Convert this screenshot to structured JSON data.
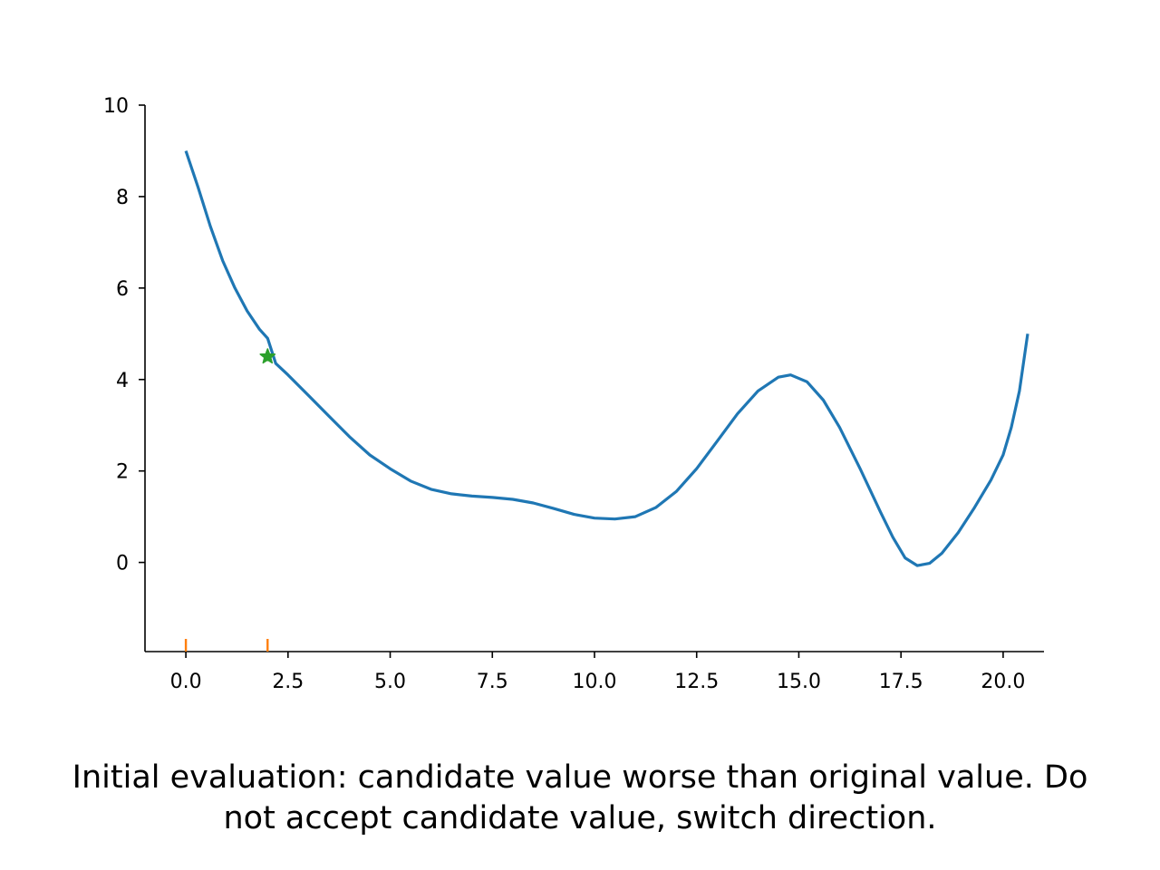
{
  "chart_data": {
    "type": "line",
    "xlim": [
      -1,
      21
    ],
    "ylim": [
      -1.95,
      10
    ],
    "x_ticks": [
      "0.0",
      "2.5",
      "5.0",
      "7.5",
      "10.0",
      "12.5",
      "15.0",
      "17.5",
      "20.0"
    ],
    "y_ticks": [
      "0",
      "2",
      "4",
      "6",
      "8",
      "10"
    ],
    "grid": false,
    "series": [
      {
        "color": "#1f77b4",
        "points": [
          [
            0.0,
            9.0
          ],
          [
            0.3,
            8.2
          ],
          [
            0.6,
            7.35
          ],
          [
            0.9,
            6.6
          ],
          [
            1.2,
            6.0
          ],
          [
            1.5,
            5.5
          ],
          [
            1.8,
            5.1
          ],
          [
            2.0,
            4.9
          ],
          [
            2.2,
            4.35
          ],
          [
            2.5,
            4.1
          ],
          [
            3.0,
            3.65
          ],
          [
            3.5,
            3.2
          ],
          [
            4.0,
            2.75
          ],
          [
            4.5,
            2.35
          ],
          [
            5.0,
            2.05
          ],
          [
            5.5,
            1.78
          ],
          [
            6.0,
            1.6
          ],
          [
            6.5,
            1.5
          ],
          [
            7.0,
            1.45
          ],
          [
            7.5,
            1.42
          ],
          [
            8.0,
            1.38
          ],
          [
            8.5,
            1.3
          ],
          [
            9.0,
            1.18
          ],
          [
            9.5,
            1.05
          ],
          [
            10.0,
            0.97
          ],
          [
            10.5,
            0.95
          ],
          [
            11.0,
            1.0
          ],
          [
            11.5,
            1.2
          ],
          [
            12.0,
            1.55
          ],
          [
            12.5,
            2.05
          ],
          [
            13.0,
            2.65
          ],
          [
            13.5,
            3.25
          ],
          [
            14.0,
            3.75
          ],
          [
            14.5,
            4.05
          ],
          [
            14.8,
            4.1
          ],
          [
            15.2,
            3.95
          ],
          [
            15.6,
            3.55
          ],
          [
            16.0,
            2.95
          ],
          [
            16.5,
            2.05
          ],
          [
            17.0,
            1.1
          ],
          [
            17.3,
            0.55
          ],
          [
            17.6,
            0.1
          ],
          [
            17.9,
            -0.07
          ],
          [
            18.2,
            -0.02
          ],
          [
            18.5,
            0.2
          ],
          [
            18.9,
            0.65
          ],
          [
            19.3,
            1.2
          ],
          [
            19.7,
            1.8
          ],
          [
            20.0,
            2.35
          ],
          [
            20.2,
            2.95
          ],
          [
            20.4,
            3.75
          ],
          [
            20.6,
            5.0
          ]
        ]
      }
    ],
    "current_point": {
      "x": 2.0,
      "y": 4.5,
      "marker": "star",
      "color": "#2ca02c"
    },
    "rug_ticks": {
      "x": [
        0.0,
        2.0
      ],
      "color": "#ff7f0e"
    }
  },
  "caption": {
    "line1": "Initial evaluation: candidate value worse than original value. Do",
    "line2": "not accept candidate value, switch direction."
  }
}
